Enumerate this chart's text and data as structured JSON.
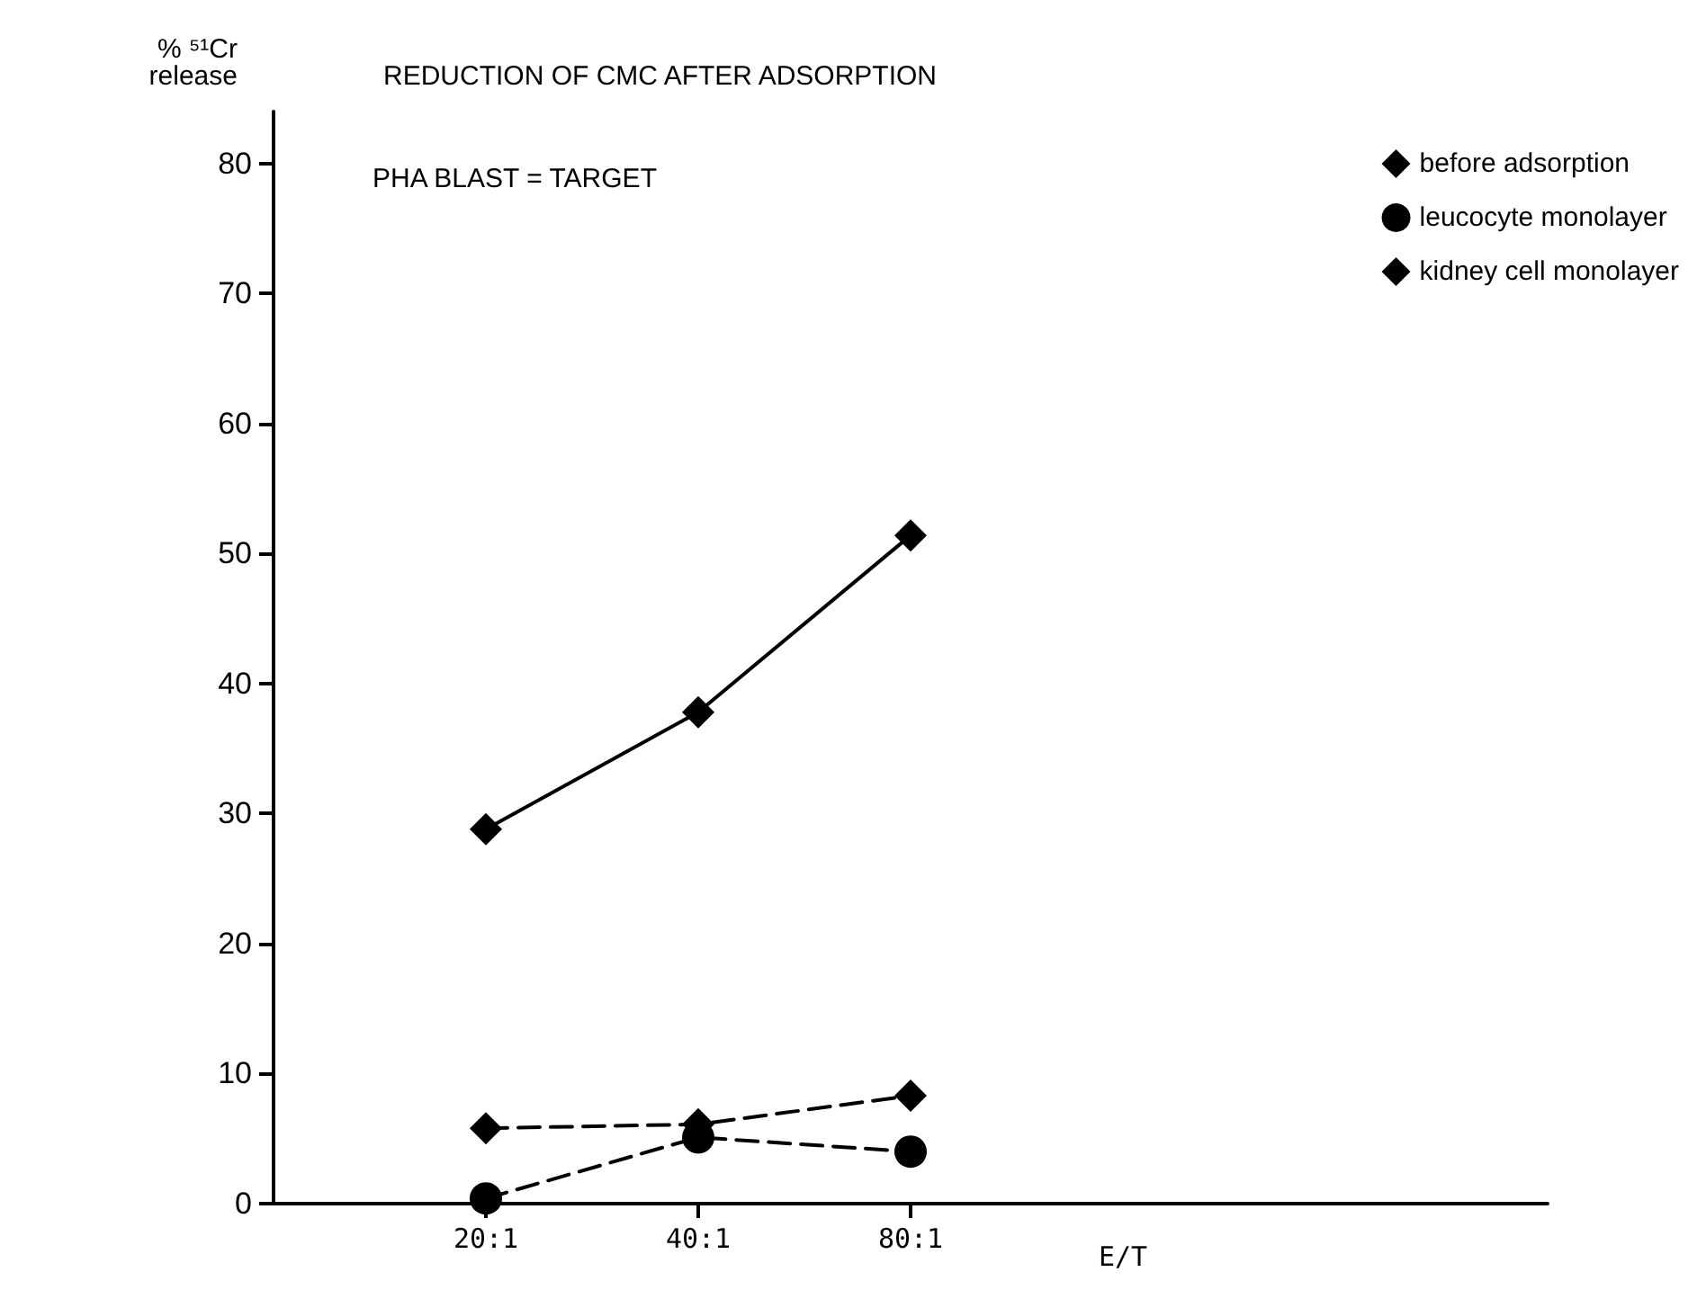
{
  "chart_data": {
    "type": "line",
    "title": "REDUCTION OF CMC AFTER ADSORPTION",
    "xlabel": "E/T",
    "ylabel": "% ⁵¹Cr release",
    "annotations": [
      "PHA BLAST = TARGET"
    ],
    "categories": [
      "20:1",
      "40:1",
      "80:1"
    ],
    "series": [
      {
        "name": "before adsorption",
        "color": "#000000",
        "marker": "diamond",
        "line_style": "solid",
        "values": [
          28.8,
          37.8,
          51.4
        ]
      },
      {
        "name": "leucocyte monolayer",
        "color": "#000000",
        "marker": "circle",
        "line_style": "dashed",
        "values": [
          0.4,
          5.1,
          4.0
        ]
      },
      {
        "name": "kidney cell monolayer",
        "color": "#000000",
        "marker": "diamond",
        "line_style": "dashed",
        "values": [
          5.8,
          6.1,
          8.3
        ]
      }
    ],
    "ylim": [
      0,
      84
    ],
    "yticks": [
      0,
      10,
      20,
      30,
      40,
      50,
      60,
      70,
      80
    ],
    "grid": false,
    "legend": "top right"
  }
}
